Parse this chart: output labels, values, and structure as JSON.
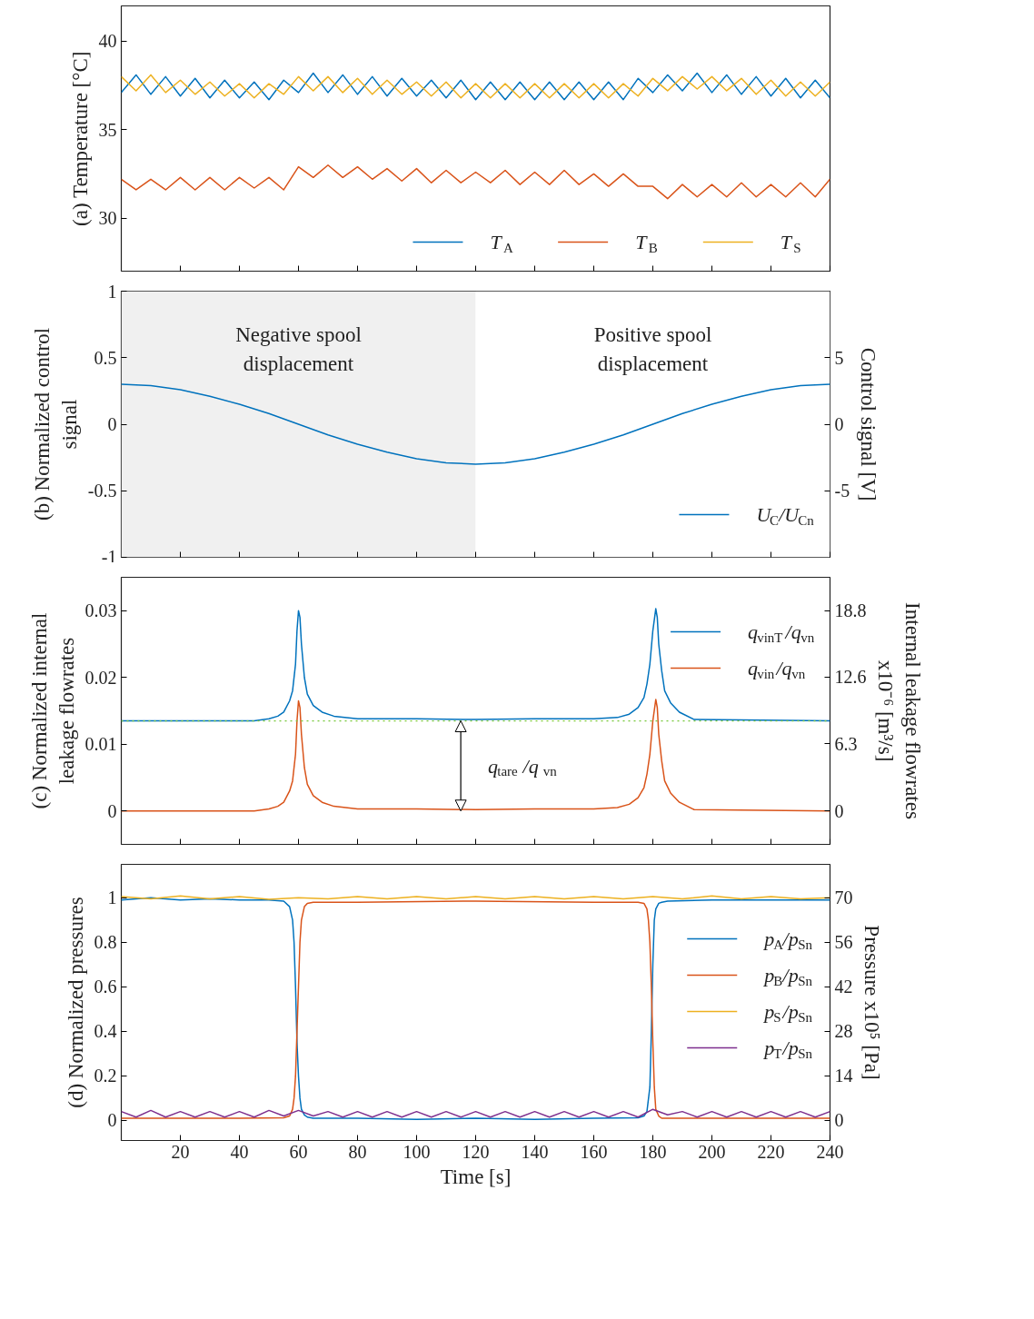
{
  "chart_data": [
    {
      "type": "line",
      "ylabel": "(a) Temperature [°C]",
      "x": [
        0,
        5,
        10,
        15,
        20,
        25,
        30,
        35,
        40,
        45,
        50,
        55,
        60,
        65,
        70,
        75,
        80,
        85,
        90,
        95,
        100,
        105,
        110,
        115,
        120,
        125,
        130,
        135,
        140,
        145,
        150,
        155,
        160,
        165,
        170,
        175,
        180,
        185,
        190,
        195,
        200,
        205,
        210,
        215,
        220,
        225,
        230,
        235,
        240
      ],
      "xlim": [
        0,
        240
      ],
      "xticks": [
        20,
        40,
        60,
        80,
        100,
        120,
        140,
        160,
        180,
        200,
        220,
        240
      ],
      "ylim": [
        27,
        42
      ],
      "yticks": [
        30,
        35,
        40
      ],
      "tick_labels": "y",
      "legend": "bottom",
      "series": [
        {
          "name": "T$_{A}$",
          "color": "#0072bd",
          "values": [
            37.1,
            38.1,
            37.0,
            38.0,
            36.9,
            37.9,
            36.8,
            37.8,
            36.8,
            37.7,
            36.7,
            37.8,
            37.1,
            38.2,
            37.1,
            38.1,
            37.0,
            38.0,
            36.9,
            37.9,
            36.9,
            37.8,
            36.8,
            37.8,
            36.7,
            37.7,
            36.7,
            37.7,
            36.7,
            37.7,
            36.7,
            37.7,
            36.7,
            37.7,
            36.7,
            37.9,
            37.1,
            38.1,
            37.2,
            38.2,
            37.1,
            38.1,
            37.0,
            38.0,
            36.9,
            37.9,
            36.8,
            37.8,
            36.8
          ]
        },
        {
          "name": "T$_{B}$",
          "color": "#d95319",
          "values": [
            32.2,
            31.6,
            32.2,
            31.6,
            32.3,
            31.6,
            32.3,
            31.6,
            32.3,
            31.7,
            32.3,
            31.6,
            32.9,
            32.3,
            33.0,
            32.3,
            32.9,
            32.2,
            32.8,
            32.1,
            32.8,
            32.0,
            32.7,
            32.0,
            32.6,
            32.0,
            32.7,
            31.9,
            32.6,
            31.9,
            32.7,
            31.9,
            32.5,
            31.8,
            32.5,
            31.8,
            31.8,
            31.1,
            31.9,
            31.2,
            31.9,
            31.2,
            32.0,
            31.2,
            31.9,
            31.2,
            32.0,
            31.2,
            32.2
          ]
        },
        {
          "name": "T$_{S}$",
          "color": "#edb120",
          "values": [
            38.0,
            37.2,
            38.1,
            37.1,
            37.8,
            37.0,
            37.7,
            36.9,
            37.6,
            36.8,
            37.6,
            37.0,
            38.0,
            37.2,
            38.0,
            37.1,
            37.9,
            37.0,
            37.8,
            37.0,
            37.7,
            36.9,
            37.7,
            36.8,
            37.6,
            36.8,
            37.6,
            36.8,
            37.6,
            36.8,
            37.6,
            36.8,
            37.6,
            36.8,
            37.6,
            36.9,
            37.9,
            37.2,
            38.0,
            37.3,
            38.0,
            37.2,
            37.9,
            37.0,
            37.8,
            36.9,
            37.7,
            36.9,
            37.7
          ]
        }
      ]
    },
    {
      "type": "line",
      "ylabel": "(b) Normalized control\nsignal",
      "y2label": "Control signal [V]",
      "x": [
        0,
        10,
        20,
        30,
        40,
        50,
        60,
        70,
        80,
        90,
        100,
        110,
        120,
        130,
        140,
        150,
        160,
        170,
        180,
        190,
        200,
        210,
        220,
        230,
        240
      ],
      "xlim": [
        0,
        240
      ],
      "xticks": [
        20,
        40,
        60,
        80,
        100,
        120,
        140,
        160,
        180,
        200,
        220,
        240
      ],
      "ylim": [
        -1,
        1
      ],
      "yticks": [
        -1,
        -0.5,
        0,
        0.5,
        1
      ],
      "y2lim": [
        -10,
        10
      ],
      "y2ticks": [
        -5,
        0,
        5
      ],
      "tick_labels": "y",
      "legend": "bottom right",
      "bands": [
        {
          "axis": "x",
          "from": 0,
          "to": 120,
          "label": "Negative spool\ndisplacement",
          "color": "#f0f0f0"
        },
        {
          "axis": "x",
          "from": 120,
          "to": 240,
          "label": "Positive spool\ndisplacement",
          "color": "#ffffff"
        }
      ],
      "series": [
        {
          "name": "U$_{C}$/U$_{Cn}$",
          "color": "#0072bd",
          "values": [
            0.3,
            0.29,
            0.26,
            0.21,
            0.15,
            0.08,
            0,
            -0.08,
            -0.15,
            -0.21,
            -0.26,
            -0.29,
            -0.3,
            -0.29,
            -0.26,
            -0.21,
            -0.15,
            -0.08,
            0,
            0.08,
            0.15,
            0.21,
            0.26,
            0.29,
            0.3
          ]
        }
      ]
    },
    {
      "type": "line",
      "ylabel": "(c) Normalized internal\nleakage flowrates",
      "y2label": "Internal leakage flowrates\nx10⁻⁶ [m³/s]",
      "xlim": [
        0,
        240
      ],
      "xticks": [
        20,
        40,
        60,
        80,
        100,
        120,
        140,
        160,
        180,
        200,
        220,
        240
      ],
      "ylim": [
        -0.005,
        0.035
      ],
      "yticks": [
        0,
        0.01,
        0.02,
        0.03
      ],
      "y2lim": [
        -3.135,
        21.945
      ],
      "y2ticks": [
        0,
        6.3,
        12.6,
        18.8
      ],
      "tick_labels": "y",
      "legend": "top right",
      "ref_lines": [
        {
          "axis": "y",
          "value": 0.0135,
          "color": "#77c83b",
          "line_style": "dotted"
        }
      ],
      "annotations": [
        "q$_{tare}$ /q$_{vn}$"
      ],
      "series": [
        {
          "name": "q$_{vinT}$/q$_{vn}$",
          "color": "#0072bd",
          "x": [
            0,
            45,
            50,
            53,
            55,
            57,
            58,
            59,
            59.5,
            60,
            60.5,
            61,
            62,
            63,
            65,
            68,
            72,
            80,
            100,
            120,
            140,
            160,
            168,
            172,
            175,
            177,
            178,
            179,
            180,
            181,
            181.5,
            182,
            183,
            184,
            186,
            189,
            194,
            240
          ],
          "values": [
            0.0135,
            0.0135,
            0.0138,
            0.0142,
            0.0148,
            0.0165,
            0.018,
            0.022,
            0.027,
            0.03,
            0.029,
            0.025,
            0.02,
            0.0175,
            0.0158,
            0.0148,
            0.0142,
            0.0138,
            0.0138,
            0.0137,
            0.0138,
            0.0138,
            0.014,
            0.0145,
            0.0155,
            0.017,
            0.019,
            0.022,
            0.027,
            0.0303,
            0.029,
            0.025,
            0.021,
            0.018,
            0.0162,
            0.0148,
            0.0137,
            0.0135
          ]
        },
        {
          "name": "q$_{vin}$/q$_{vn}$",
          "color": "#d95319",
          "x": [
            0,
            45,
            50,
            53,
            55,
            57,
            58,
            59,
            59.5,
            60,
            60.5,
            61,
            62,
            63,
            65,
            68,
            72,
            80,
            100,
            120,
            140,
            160,
            168,
            172,
            175,
            177,
            178,
            179,
            180,
            181,
            181.5,
            182,
            183,
            184,
            186,
            189,
            194,
            240
          ],
          "values": [
            0,
            0,
            0.0003,
            0.0007,
            0.0013,
            0.003,
            0.0045,
            0.0085,
            0.0135,
            0.0165,
            0.0155,
            0.0115,
            0.0065,
            0.004,
            0.0023,
            0.0013,
            0.0007,
            0.0003,
            0.0003,
            0.0002,
            0.0003,
            0.0003,
            0.0005,
            0.001,
            0.002,
            0.0035,
            0.0055,
            0.0085,
            0.0135,
            0.0167,
            0.0155,
            0.0115,
            0.0075,
            0.0045,
            0.0027,
            0.0013,
            0.0002,
            0
          ]
        }
      ]
    },
    {
      "type": "line",
      "ylabel": "(d) Normalized pressures",
      "y2label": "Pressure x10⁵ [Pa]",
      "xlabel": "Time [s]",
      "xlim": [
        0,
        240
      ],
      "xticks": [
        20,
        40,
        60,
        80,
        100,
        120,
        140,
        160,
        180,
        200,
        220,
        240
      ],
      "ylim": [
        -0.09,
        1.15
      ],
      "yticks": [
        0,
        0.2,
        0.4,
        0.6,
        0.8,
        1
      ],
      "y2lim": [
        -6.3,
        80.5
      ],
      "y2ticks": [
        0,
        14,
        28,
        42,
        56,
        70
      ],
      "legend": "right",
      "series": [
        {
          "name": "p$_{A}$/p$_{Sn}$",
          "color": "#0072bd",
          "x": [
            0,
            10,
            20,
            30,
            40,
            50,
            55,
            57,
            58,
            58.5,
            59,
            59.5,
            60,
            60.5,
            61,
            62,
            63,
            65,
            80,
            100,
            120,
            140,
            160,
            175,
            177,
            178,
            179,
            179.5,
            180,
            180.5,
            181,
            182,
            183,
            185,
            200,
            220,
            240
          ],
          "values": [
            0.99,
            1.0,
            0.99,
            0.995,
            0.99,
            0.99,
            0.985,
            0.96,
            0.9,
            0.8,
            0.6,
            0.35,
            0.2,
            0.1,
            0.05,
            0.025,
            0.015,
            0.01,
            0.01,
            0.005,
            0.01,
            0.005,
            0.01,
            0.012,
            0.02,
            0.04,
            0.15,
            0.4,
            0.7,
            0.9,
            0.95,
            0.975,
            0.98,
            0.985,
            0.99,
            0.99,
            0.99
          ]
        },
        {
          "name": "p$_{B}$/p$_{Sn}$",
          "color": "#d95319",
          "x": [
            0,
            20,
            40,
            55,
            57,
            58,
            58.5,
            59,
            59.5,
            60,
            60.5,
            61,
            62,
            63,
            65,
            80,
            120,
            160,
            175,
            177,
            178,
            178.5,
            179,
            179.5,
            180,
            180.5,
            181,
            182,
            183,
            200,
            240
          ],
          "values": [
            0.01,
            0.01,
            0.01,
            0.012,
            0.02,
            0.05,
            0.1,
            0.2,
            0.4,
            0.6,
            0.8,
            0.9,
            0.96,
            0.975,
            0.98,
            0.98,
            0.985,
            0.98,
            0.98,
            0.975,
            0.95,
            0.9,
            0.8,
            0.6,
            0.35,
            0.15,
            0.05,
            0.02,
            0.01,
            0.01,
            0.01
          ]
        },
        {
          "name": "p$_{S}$/p$_{Sn}$",
          "color": "#edb120",
          "x": [
            0,
            10,
            20,
            30,
            40,
            50,
            60,
            70,
            80,
            90,
            100,
            110,
            120,
            130,
            140,
            150,
            160,
            170,
            180,
            190,
            200,
            210,
            220,
            230,
            240
          ],
          "values": [
            1.005,
            0.995,
            1.008,
            0.995,
            1.005,
            0.993,
            1.0,
            0.995,
            1.005,
            0.995,
            1.005,
            0.995,
            1.005,
            0.995,
            1.005,
            0.995,
            1.005,
            0.995,
            1.005,
            0.995,
            1.008,
            0.995,
            1.005,
            0.995,
            1.0
          ]
        },
        {
          "name": "p$_{T}$/p$_{Sn}$",
          "color": "#7e2f8e",
          "x": [
            0,
            5,
            10,
            15,
            20,
            25,
            30,
            35,
            40,
            45,
            50,
            55,
            60,
            65,
            70,
            75,
            80,
            85,
            90,
            95,
            100,
            105,
            110,
            115,
            120,
            125,
            130,
            135,
            140,
            145,
            150,
            155,
            160,
            165,
            170,
            175,
            180,
            185,
            190,
            195,
            200,
            205,
            210,
            215,
            220,
            225,
            230,
            235,
            240
          ],
          "values": [
            0.04,
            0.015,
            0.045,
            0.015,
            0.04,
            0.015,
            0.04,
            0.015,
            0.04,
            0.015,
            0.045,
            0.02,
            0.045,
            0.02,
            0.04,
            0.015,
            0.04,
            0.015,
            0.04,
            0.015,
            0.04,
            0.015,
            0.04,
            0.015,
            0.04,
            0.015,
            0.04,
            0.015,
            0.04,
            0.015,
            0.04,
            0.015,
            0.04,
            0.015,
            0.04,
            0.015,
            0.05,
            0.025,
            0.04,
            0.015,
            0.04,
            0.015,
            0.04,
            0.015,
            0.04,
            0.015,
            0.04,
            0.015,
            0.04
          ]
        }
      ]
    }
  ]
}
